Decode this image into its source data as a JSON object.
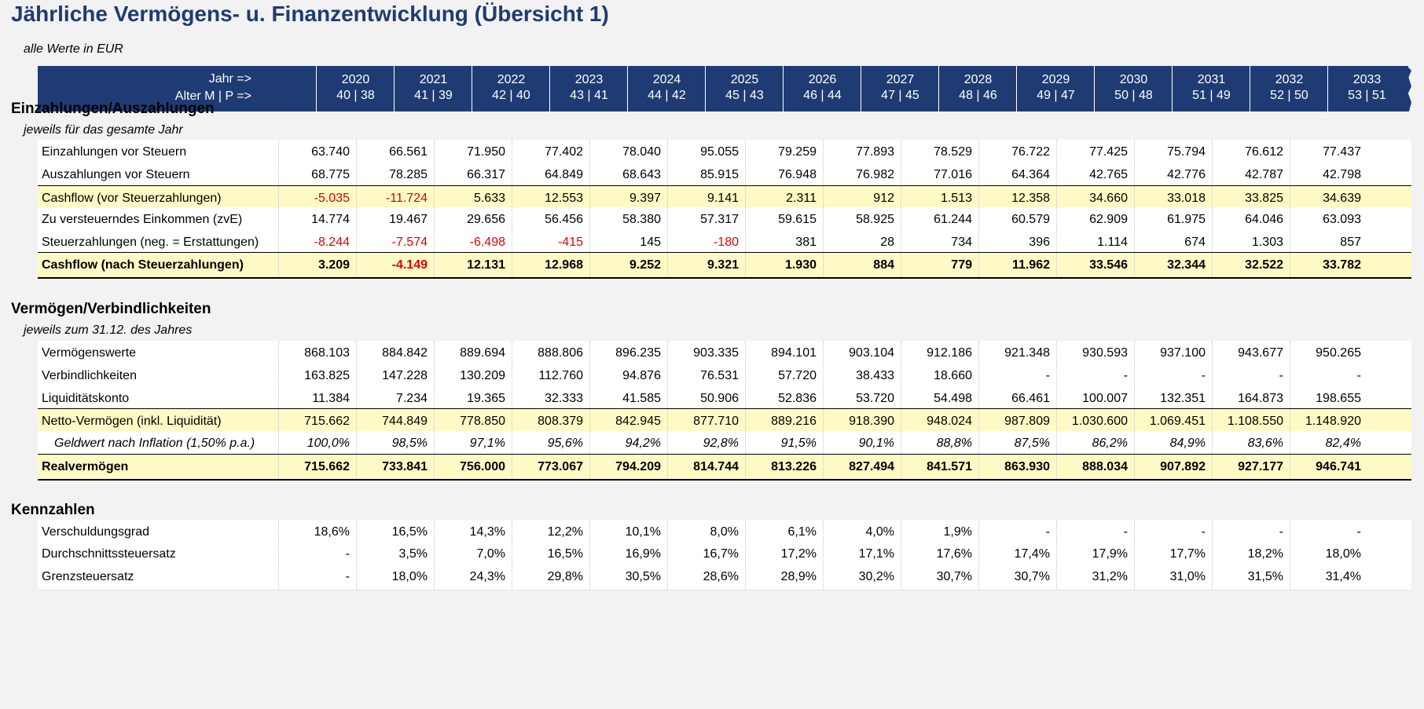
{
  "title": "Jährliche Vermögens- u. Finanzentwicklung (Übersicht 1)",
  "units_note": "alle Werte in EUR",
  "header": {
    "year_label": "Jahr =>",
    "age_label": "Alter M | P =>",
    "years": [
      "2020",
      "2021",
      "2022",
      "2023",
      "2024",
      "2025",
      "2026",
      "2027",
      "2028",
      "2029",
      "2030",
      "2031",
      "2032",
      "2033"
    ],
    "ages": [
      "40 | 38",
      "41 | 39",
      "42 | 40",
      "43 | 41",
      "44 | 42",
      "45 | 43",
      "46 | 44",
      "47 | 45",
      "48 | 46",
      "49 | 47",
      "50 | 48",
      "51 | 49",
      "52 | 50",
      "53 | 51"
    ]
  },
  "sections": [
    {
      "title": "Einzahlungen/Auszahlungen",
      "subtitle": "jeweils für das gesamte Jahr",
      "rows": [
        {
          "label": "Einzahlungen vor Steuern",
          "values": [
            "63.740",
            "66.561",
            "71.950",
            "77.402",
            "78.040",
            "95.055",
            "79.259",
            "77.893",
            "78.529",
            "76.722",
            "77.425",
            "75.794",
            "76.612",
            "77.437"
          ]
        },
        {
          "label": "Auszahlungen vor Steuern",
          "values": [
            "68.775",
            "78.285",
            "66.317",
            "64.849",
            "68.643",
            "85.915",
            "76.948",
            "76.982",
            "77.016",
            "64.364",
            "42.765",
            "42.776",
            "42.787",
            "42.798"
          ]
        },
        {
          "label": "Cashflow (vor Steuerzahlungen)",
          "style": "hl",
          "values": [
            "-5.035",
            "-11.724",
            "5.633",
            "12.553",
            "9.397",
            "9.141",
            "2.311",
            "912",
            "1.513",
            "12.358",
            "34.660",
            "33.018",
            "33.825",
            "34.639"
          ]
        },
        {
          "label": "Zu versteuerndes Einkommen (zvE)",
          "values": [
            "14.774",
            "19.467",
            "29.656",
            "56.456",
            "58.380",
            "57.317",
            "59.615",
            "58.925",
            "61.244",
            "60.579",
            "62.909",
            "61.975",
            "64.046",
            "63.093"
          ]
        },
        {
          "label": "Steuerzahlungen (neg. = Erstattungen)",
          "values": [
            "-8.244",
            "-7.574",
            "-6.498",
            "-415",
            "145",
            "-180",
            "381",
            "28",
            "734",
            "396",
            "1.114",
            "674",
            "1.303",
            "857"
          ]
        },
        {
          "label": "Cashflow (nach Steuerzahlungen)",
          "style": "total",
          "values": [
            "3.209",
            "-4.149",
            "12.131",
            "12.968",
            "9.252",
            "9.321",
            "1.930",
            "884",
            "779",
            "11.962",
            "33.546",
            "32.344",
            "32.522",
            "33.782"
          ]
        }
      ]
    },
    {
      "title": "Vermögen/Verbindlichkeiten",
      "subtitle": "jeweils zum 31.12. des Jahres",
      "rows": [
        {
          "label": "Vermögenswerte",
          "values": [
            "868.103",
            "884.842",
            "889.694",
            "888.806",
            "896.235",
            "903.335",
            "894.101",
            "903.104",
            "912.186",
            "921.348",
            "930.593",
            "937.100",
            "943.677",
            "950.265"
          ]
        },
        {
          "label": "Verbindlichkeiten",
          "values": [
            "163.825",
            "147.228",
            "130.209",
            "112.760",
            "94.876",
            "76.531",
            "57.720",
            "38.433",
            "18.660",
            "-",
            "-",
            "-",
            "-",
            "-"
          ]
        },
        {
          "label": "Liquiditätskonto",
          "values": [
            "11.384",
            "7.234",
            "19.365",
            "32.333",
            "41.585",
            "50.906",
            "52.836",
            "53.720",
            "54.498",
            "66.461",
            "100.007",
            "132.351",
            "164.873",
            "198.655"
          ]
        },
        {
          "label": "Netto-Vermögen (inkl. Liquidität)",
          "style": "hl",
          "values": [
            "715.662",
            "744.849",
            "778.850",
            "808.379",
            "842.945",
            "877.710",
            "889.216",
            "918.390",
            "948.024",
            "987.809",
            "1.030.600",
            "1.069.451",
            "1.108.550",
            "1.148.920"
          ]
        },
        {
          "label": "Geldwert nach Inflation (1,50% p.a.)",
          "style": "italic",
          "values": [
            "100,0%",
            "98,5%",
            "97,1%",
            "95,6%",
            "94,2%",
            "92,8%",
            "91,5%",
            "90,1%",
            "88,8%",
            "87,5%",
            "86,2%",
            "84,9%",
            "83,6%",
            "82,4%"
          ]
        },
        {
          "label": "Realvermögen",
          "style": "total",
          "values": [
            "715.662",
            "733.841",
            "756.000",
            "773.067",
            "794.209",
            "814.744",
            "813.226",
            "827.494",
            "841.571",
            "863.930",
            "888.034",
            "907.892",
            "927.177",
            "946.741"
          ]
        }
      ]
    },
    {
      "title": "Kennzahlen",
      "subtitle": "",
      "rows": [
        {
          "label": "Verschuldungsgrad",
          "values": [
            "18,6%",
            "16,5%",
            "14,3%",
            "12,2%",
            "10,1%",
            "8,0%",
            "6,1%",
            "4,0%",
            "1,9%",
            "-",
            "-",
            "-",
            "-",
            "-"
          ]
        },
        {
          "label": "Durchschnittssteuersatz",
          "values": [
            "-",
            "3,5%",
            "7,0%",
            "16,5%",
            "16,9%",
            "16,7%",
            "17,2%",
            "17,1%",
            "17,6%",
            "17,4%",
            "17,9%",
            "17,7%",
            "18,2%",
            "18,0%"
          ]
        },
        {
          "label": "Grenzsteuersatz",
          "values": [
            "-",
            "18,0%",
            "24,3%",
            "29,8%",
            "30,5%",
            "28,6%",
            "28,9%",
            "30,2%",
            "30,7%",
            "30,7%",
            "31,2%",
            "31,0%",
            "31,5%",
            "31,4%"
          ]
        }
      ]
    }
  ],
  "colors": {
    "header_bg": "#1f3b73",
    "title": "#1f3b73",
    "highlight": "#fdfac6",
    "negative": "#e00000"
  }
}
